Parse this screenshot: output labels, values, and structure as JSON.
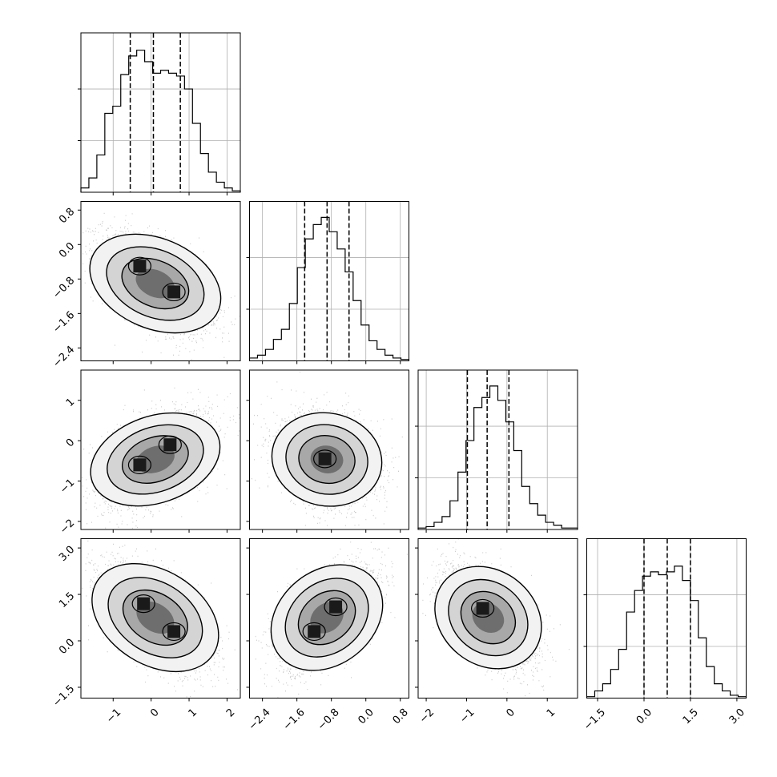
{
  "chart_data": {
    "type": "corner",
    "title": "",
    "parameters": [
      {
        "index": 0,
        "range": [
          -1.85,
          2.35
        ],
        "ticks": [
          -1,
          0,
          1,
          2
        ],
        "tick_labels": [
          "−1",
          "0",
          "1",
          "2"
        ],
        "quantiles": [
          -0.55,
          0.06,
          0.77
        ],
        "hist_counts": [
          0.03,
          0.1,
          0.26,
          0.55,
          0.6,
          0.82,
          0.95,
          0.99,
          0.91,
          0.83,
          0.85,
          0.83,
          0.81,
          0.72,
          0.48,
          0.27,
          0.14,
          0.07,
          0.03,
          0.01
        ]
      },
      {
        "index": 1,
        "range": [
          -2.7,
          1.0
        ],
        "ticks": [
          -2.4,
          -1.6,
          -0.8,
          0.0,
          0.8
        ],
        "tick_labels": [
          "−2.4",
          "−1.6",
          "−0.8",
          "0.0",
          "0.8"
        ],
        "quantiles": [
          -1.42,
          -0.9,
          -0.39
        ],
        "hist_counts": [
          0.02,
          0.04,
          0.08,
          0.15,
          0.22,
          0.4,
          0.65,
          0.85,
          0.95,
          1.0,
          0.9,
          0.78,
          0.62,
          0.42,
          0.25,
          0.14,
          0.08,
          0.04,
          0.02,
          0.01
        ]
      },
      {
        "index": 2,
        "range": [
          -2.2,
          1.75
        ],
        "ticks": [
          -2,
          -1,
          0,
          1
        ],
        "tick_labels": [
          "−2",
          "−1",
          "0",
          "1"
        ],
        "quantiles": [
          -0.98,
          -0.49,
          0.05
        ],
        "hist_counts": [
          0.01,
          0.02,
          0.05,
          0.09,
          0.2,
          0.4,
          0.62,
          0.85,
          0.92,
          1.0,
          0.9,
          0.75,
          0.55,
          0.3,
          0.18,
          0.1,
          0.05,
          0.03,
          0.01,
          0.01
        ]
      },
      {
        "index": 3,
        "range": [
          -1.85,
          3.3
        ],
        "ticks": [
          -1.5,
          0.0,
          1.5,
          3.0
        ],
        "tick_labels": [
          "−1.5",
          "0.0",
          "1.5",
          "3.0"
        ],
        "quantiles": [
          0.0,
          0.75,
          1.5
        ],
        "hist_counts": [
          0.01,
          0.05,
          0.1,
          0.2,
          0.34,
          0.6,
          0.75,
          0.85,
          0.88,
          0.86,
          0.88,
          0.92,
          0.82,
          0.68,
          0.42,
          0.22,
          0.1,
          0.05,
          0.02,
          0.01
        ]
      }
    ],
    "pairs": [
      {
        "x_param": 0,
        "y_param": 1,
        "correlation": -0.55,
        "modes": [
          [
            -0.3,
            -0.5
          ],
          [
            0.6,
            -1.1
          ]
        ]
      },
      {
        "x_param": 0,
        "y_param": 2,
        "correlation": 0.45,
        "modes": [
          [
            -0.3,
            -0.6
          ],
          [
            0.5,
            -0.1
          ]
        ]
      },
      {
        "x_param": 1,
        "y_param": 2,
        "correlation": -0.2,
        "modes": [
          [
            -0.95,
            -0.45
          ]
        ]
      },
      {
        "x_param": 0,
        "y_param": 3,
        "correlation": -0.55,
        "modes": [
          [
            -0.2,
            1.2
          ],
          [
            0.6,
            0.3
          ]
        ]
      },
      {
        "x_param": 1,
        "y_param": 3,
        "correlation": 0.55,
        "modes": [
          [
            -1.2,
            0.3
          ],
          [
            -0.7,
            1.1
          ]
        ]
      },
      {
        "x_param": 2,
        "y_param": 3,
        "correlation": -0.55,
        "modes": [
          [
            -0.6,
            1.05
          ]
        ]
      }
    ],
    "grid": true,
    "legend": "none",
    "xlabel": "",
    "ylabel": ""
  }
}
